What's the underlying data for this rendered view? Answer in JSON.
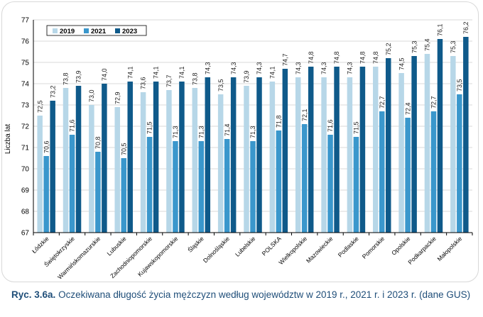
{
  "caption": {
    "label": "Ryc. 3.6a.",
    "text": "Oczekiwana długość życia mężczyzn według województw w 2019 r., 2021 r. i 2023 r. (dane GUS)"
  },
  "colors": {
    "s2019": "#b7d7e8",
    "s2021": "#3a97cc",
    "s2023": "#0f5a8a",
    "grid": "#d9d9d9",
    "axis": "#000000"
  },
  "chart_data": {
    "type": "bar",
    "title": "",
    "xlabel": "",
    "ylabel": "Liczba lat",
    "ylim": [
      67,
      77
    ],
    "yticks": [
      67,
      68,
      69,
      70,
      71,
      72,
      73,
      74,
      75,
      76,
      77
    ],
    "grid": true,
    "legend_position": "top-left",
    "categories": [
      "Łódzkie",
      "Świętokrzyskie",
      "Warmińskomazurskie",
      "Lubuskie",
      "Zachodniopomorskie",
      "Kujawskopomorskie",
      "Śląskie",
      "Dolnośląskie",
      "Lubelskie",
      "POLSKA",
      "Wielkopolskie",
      "Mazowieckie",
      "Podlaskie",
      "Pomorskie",
      "Opolskie",
      "Podkarpackie",
      "Małopolskie"
    ],
    "series": [
      {
        "name": "2019",
        "values": [
          72.5,
          73.8,
          73.0,
          72.9,
          73.6,
          73.7,
          73.8,
          73.5,
          73.9,
          74.1,
          74.3,
          74.3,
          74.3,
          74.8,
          74.5,
          75.4,
          75.3
        ],
        "labels": [
          "72,5",
          "73,8",
          "73,0",
          "72,9",
          "73,6",
          "73,7",
          "73,8",
          "73,5",
          "73,9",
          "74,1",
          "74,3",
          "74,3",
          "74,3",
          "74,8",
          "74,5",
          "75,4",
          "75,3"
        ]
      },
      {
        "name": "2021",
        "values": [
          70.6,
          71.6,
          70.8,
          70.5,
          71.5,
          71.3,
          71.3,
          71.4,
          71.3,
          71.8,
          72.1,
          71.6,
          71.5,
          72.7,
          72.4,
          72.7,
          73.5
        ],
        "labels": [
          "70,6",
          "71,6",
          "70,8",
          "70,5",
          "71,5",
          "71,3",
          "71,3",
          "71,4",
          "71,3",
          "71,8",
          "72,1",
          "71,6",
          "71,5",
          "72,7",
          "72,4",
          "72,7",
          "73,5"
        ]
      },
      {
        "name": "2023",
        "values": [
          73.2,
          73.9,
          74.0,
          74.1,
          74.1,
          74.1,
          74.3,
          74.3,
          74.3,
          74.7,
          74.8,
          74.8,
          74.8,
          75.2,
          75.3,
          76.1,
          76.2
        ],
        "labels": [
          "73,2",
          "73,9",
          "74,0",
          "74,1",
          "74,1",
          "74,1",
          "74,3",
          "74,3",
          "74,3",
          "74,7",
          "74,8",
          "74,8",
          "74,8",
          "75,2",
          "75,3",
          "76,1",
          "76,2"
        ]
      }
    ]
  }
}
